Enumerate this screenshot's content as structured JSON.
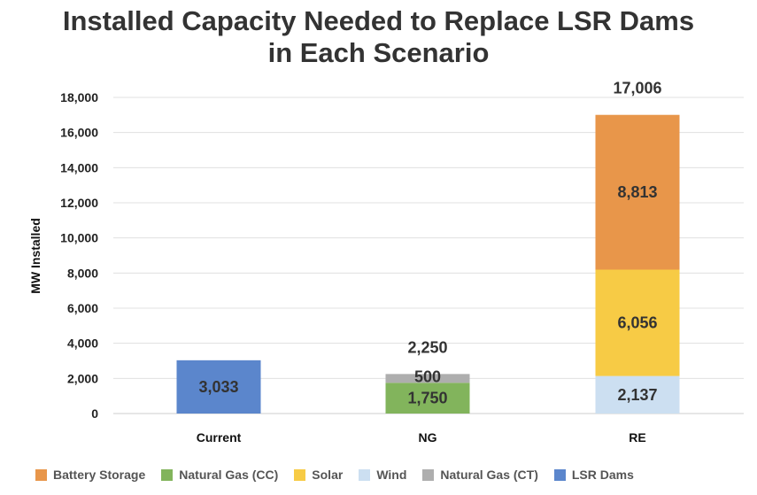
{
  "chart_data": {
    "type": "bar",
    "stacked": true,
    "title_line1": "Installed Capacity Needed to Replace LSR Dams",
    "title_line2": "in Each Scenario",
    "xlabel": "",
    "ylabel": "MW Installed",
    "ylim": [
      0,
      18000
    ],
    "yticks": [
      0,
      2000,
      4000,
      6000,
      8000,
      10000,
      12000,
      14000,
      16000,
      18000
    ],
    "ytick_labels": [
      "0",
      "2,000",
      "4,000",
      "6,000",
      "8,000",
      "10,000",
      "12,000",
      "14,000",
      "16,000",
      "18,000"
    ],
    "grid": true,
    "legend_position": "bottom",
    "categories": [
      "Current",
      "NG",
      "RE"
    ],
    "totals": [
      {
        "category": "NG",
        "label": "2,250",
        "value": 2250
      },
      {
        "category": "RE",
        "label": "17,006",
        "value": 17006
      }
    ],
    "series": [
      {
        "name": "Battery Storage",
        "color": "#E8964A",
        "values": [
          0,
          0,
          8813
        ],
        "labels": [
          "",
          "",
          "8,813"
        ]
      },
      {
        "name": "Natural Gas (CC)",
        "color": "#82B45C",
        "values": [
          0,
          1750,
          0
        ],
        "labels": [
          "",
          "1,750",
          ""
        ]
      },
      {
        "name": "Solar",
        "color": "#F7CB45",
        "values": [
          0,
          0,
          6056
        ],
        "labels": [
          "",
          "",
          "6,056"
        ]
      },
      {
        "name": "Wind",
        "color": "#CCDFF1",
        "values": [
          0,
          0,
          2137
        ],
        "labels": [
          "",
          "",
          "2,137"
        ]
      },
      {
        "name": "Natural Gas (CT)",
        "color": "#AEAEAE",
        "values": [
          0,
          500,
          0
        ],
        "labels": [
          "",
          "500",
          ""
        ]
      },
      {
        "name": "LSR Dams",
        "color": "#5B86CC",
        "values": [
          3033,
          0,
          0
        ],
        "labels": [
          "3,033",
          "",
          ""
        ]
      }
    ],
    "stack_order": [
      5,
      1,
      4,
      3,
      2,
      0
    ]
  }
}
